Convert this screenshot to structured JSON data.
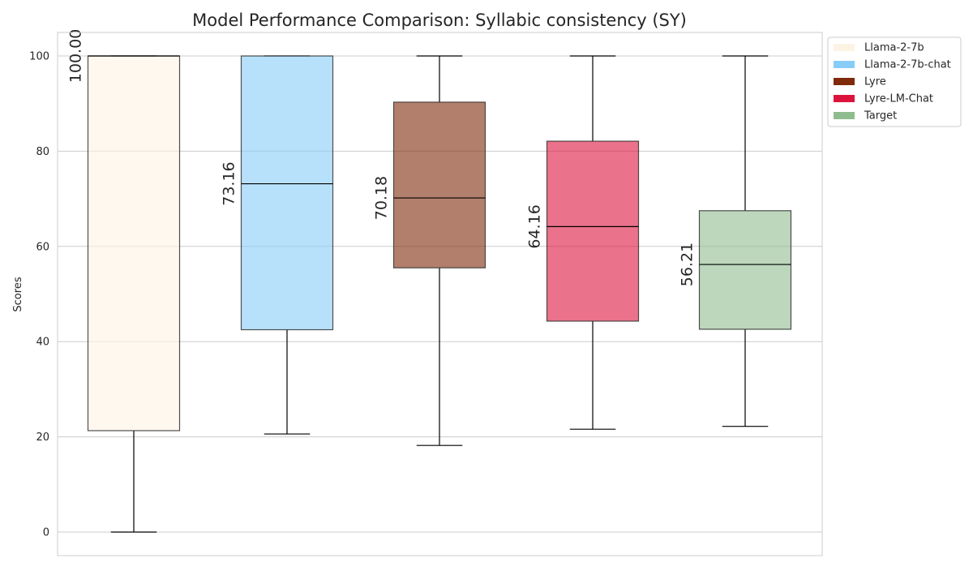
{
  "chart_data": {
    "type": "box",
    "title": "Model Performance Comparison: Syllabic consistency (SY)",
    "xlabel": "",
    "ylabel": "Scores",
    "ylim": [
      -5,
      105
    ],
    "yticks": [
      0,
      20,
      40,
      60,
      80,
      100
    ],
    "grid": true,
    "legend_position": "outside top-right",
    "series": [
      {
        "name": "Llama-2-7b",
        "color": "#fdf3e4",
        "whisker_low": 0.0,
        "q1": 21.3,
        "median": 100.0,
        "q3": 100.0,
        "whisker_high": 100.0,
        "median_label": "100.00"
      },
      {
        "name": "Llama-2-7b-chat",
        "color": "#87cdf8",
        "whisker_low": 20.6,
        "q1": 42.5,
        "median": 73.16,
        "q3": 100.0,
        "whisker_high": 100.0,
        "median_label": "73.16"
      },
      {
        "name": "Lyre",
        "color": "#7f2a0a",
        "whisker_low": 18.2,
        "q1": 55.5,
        "median": 70.18,
        "q3": 90.3,
        "whisker_high": 100.0,
        "median_label": "70.18"
      },
      {
        "name": "Lyre-LM-Chat",
        "color": "#dc143c",
        "whisker_low": 21.6,
        "q1": 44.3,
        "median": 64.16,
        "q3": 82.1,
        "whisker_high": 100.0,
        "median_label": "64.16"
      },
      {
        "name": "Target",
        "color": "#8fbc8f",
        "whisker_low": 22.2,
        "q1": 42.6,
        "median": 56.21,
        "q3": 67.5,
        "whisker_high": 100.0,
        "median_label": "56.21"
      }
    ]
  }
}
